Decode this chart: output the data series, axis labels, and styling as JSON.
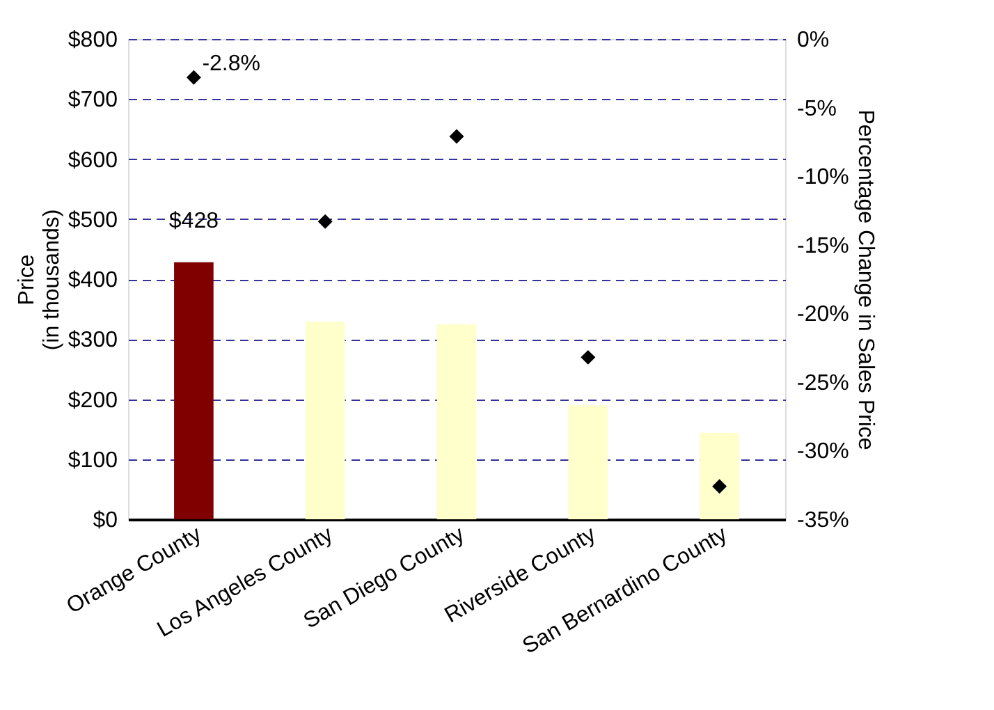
{
  "chart_data": {
    "type": "bar",
    "ylabel": "Price\n(in thousands)",
    "y2label": "Percentage Change in Sales Price",
    "categories": [
      "Orange County",
      "Los Angeles  County",
      "San Diego  County",
      "Riverside  County",
      "San Bernardino County"
    ],
    "series": [
      {
        "colors": [
          "#800000",
          "#ffffcc",
          "#ffffcc",
          "#ffffcc",
          "#ffffcc"
        ],
        "values": [
          428,
          329,
          325,
          190,
          144
        ],
        "value_labels": [
          "$428",
          null,
          null,
          null,
          null
        ]
      },
      {
        "type": "scatter",
        "axis": "y2",
        "color": "#000000",
        "marker": "diamond",
        "values": [
          -2.8,
          -13.3,
          -7.1,
          -23.2,
          -32.6
        ],
        "value_labels": [
          "-2.8%",
          null,
          null,
          null,
          null
        ]
      }
    ],
    "ylim": [
      0,
      800
    ],
    "yticks": [
      {
        "value": 0,
        "label": "$0"
      },
      {
        "value": 100,
        "label": "$100"
      },
      {
        "value": 200,
        "label": "$200"
      },
      {
        "value": 300,
        "label": "$300"
      },
      {
        "value": 400,
        "label": "$400"
      },
      {
        "value": 500,
        "label": "$500"
      },
      {
        "value": 600,
        "label": "$600"
      },
      {
        "value": 700,
        "label": "$700"
      },
      {
        "value": 800,
        "label": "$800"
      }
    ],
    "y2lim": [
      -35,
      0
    ],
    "y2ticks": [
      {
        "value": -35,
        "label": "-35%"
      },
      {
        "value": -30,
        "label": "-30%"
      },
      {
        "value": -25,
        "label": "-25%"
      },
      {
        "value": -20,
        "label": "-20%"
      },
      {
        "value": -15,
        "label": "-15%"
      },
      {
        "value": -10,
        "label": "-10%"
      },
      {
        "value": -5,
        "label": "-5%"
      },
      {
        "value": 0,
        "label": "0%"
      }
    ],
    "grid": "y"
  }
}
